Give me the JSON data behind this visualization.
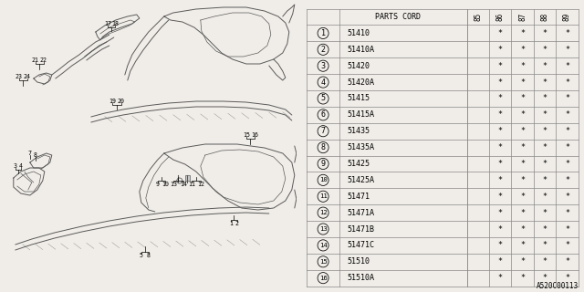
{
  "diagram_code": "A520C00113",
  "bg_color": "#f0ede8",
  "table_bg": "#ffffff",
  "col_header": "PARTS CORD",
  "year_cols": [
    "85",
    "86",
    "87",
    "88",
    "89"
  ],
  "rows": [
    {
      "num": 1,
      "part": "51410",
      "vals": [
        "",
        "*",
        "*",
        "*",
        "*"
      ]
    },
    {
      "num": 2,
      "part": "51410A",
      "vals": [
        "",
        "*",
        "*",
        "*",
        "*"
      ]
    },
    {
      "num": 3,
      "part": "51420",
      "vals": [
        "",
        "*",
        "*",
        "*",
        "*"
      ]
    },
    {
      "num": 4,
      "part": "51420A",
      "vals": [
        "",
        "*",
        "*",
        "*",
        "*"
      ]
    },
    {
      "num": 5,
      "part": "51415",
      "vals": [
        "",
        "*",
        "*",
        "*",
        "*"
      ]
    },
    {
      "num": 6,
      "part": "51415A",
      "vals": [
        "",
        "*",
        "*",
        "*",
        "*"
      ]
    },
    {
      "num": 7,
      "part": "51435",
      "vals": [
        "",
        "*",
        "*",
        "*",
        "*"
      ]
    },
    {
      "num": 8,
      "part": "51435A",
      "vals": [
        "",
        "*",
        "*",
        "*",
        "*"
      ]
    },
    {
      "num": 9,
      "part": "51425",
      "vals": [
        "",
        "*",
        "*",
        "*",
        "*"
      ]
    },
    {
      "num": 10,
      "part": "51425A",
      "vals": [
        "",
        "*",
        "*",
        "*",
        "*"
      ]
    },
    {
      "num": 11,
      "part": "51471",
      "vals": [
        "",
        "*",
        "*",
        "*",
        "*"
      ]
    },
    {
      "num": 12,
      "part": "51471A",
      "vals": [
        "",
        "*",
        "*",
        "*",
        "*"
      ]
    },
    {
      "num": 13,
      "part": "51471B",
      "vals": [
        "",
        "*",
        "*",
        "*",
        "*"
      ]
    },
    {
      "num": 14,
      "part": "51471C",
      "vals": [
        "",
        "*",
        "*",
        "*",
        "*"
      ]
    },
    {
      "num": 15,
      "part": "51510",
      "vals": [
        "",
        "*",
        "*",
        "*",
        "*"
      ]
    },
    {
      "num": 16,
      "part": "51510A",
      "vals": [
        "",
        "*",
        "*",
        "*",
        "*"
      ]
    }
  ],
  "line_color": "#5a5a5a",
  "text_color": "#000000",
  "font_size_table": 6.0,
  "font_size_header": 6.0,
  "font_size_year": 5.5,
  "font_size_label": 4.8
}
